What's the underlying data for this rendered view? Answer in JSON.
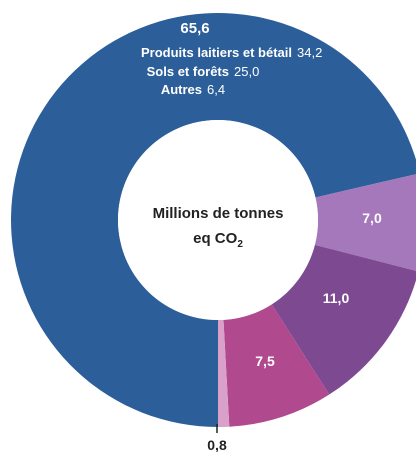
{
  "chart_data": {
    "type": "pie",
    "center_label": {
      "line1": "Millions de tonnes",
      "line2_prefix": "eq CO",
      "line2_sub": "2"
    },
    "slices": [
      {
        "label": "",
        "value": 65.6,
        "display": "65,6",
        "color": "#2c5f9a",
        "breakdown": [
          {
            "label": "Produits laitiers et bétail",
            "value": 34.2,
            "display": "34,2"
          },
          {
            "label": "Sols et forêts",
            "value": 25.0,
            "display": "25,0"
          },
          {
            "label": "Autres",
            "value": 6.4,
            "display": "6,4"
          }
        ]
      },
      {
        "label": "",
        "value": 7.0,
        "display": "7,0",
        "color": "#a578bc"
      },
      {
        "label": "",
        "value": 11.0,
        "display": "11,0",
        "color": "#7d4a92"
      },
      {
        "label": "",
        "value": 7.5,
        "display": "7,5",
        "color": "#b1498e"
      },
      {
        "label": "",
        "value": 0.8,
        "display": "0,8",
        "color": "#d9a1c9"
      }
    ]
  }
}
